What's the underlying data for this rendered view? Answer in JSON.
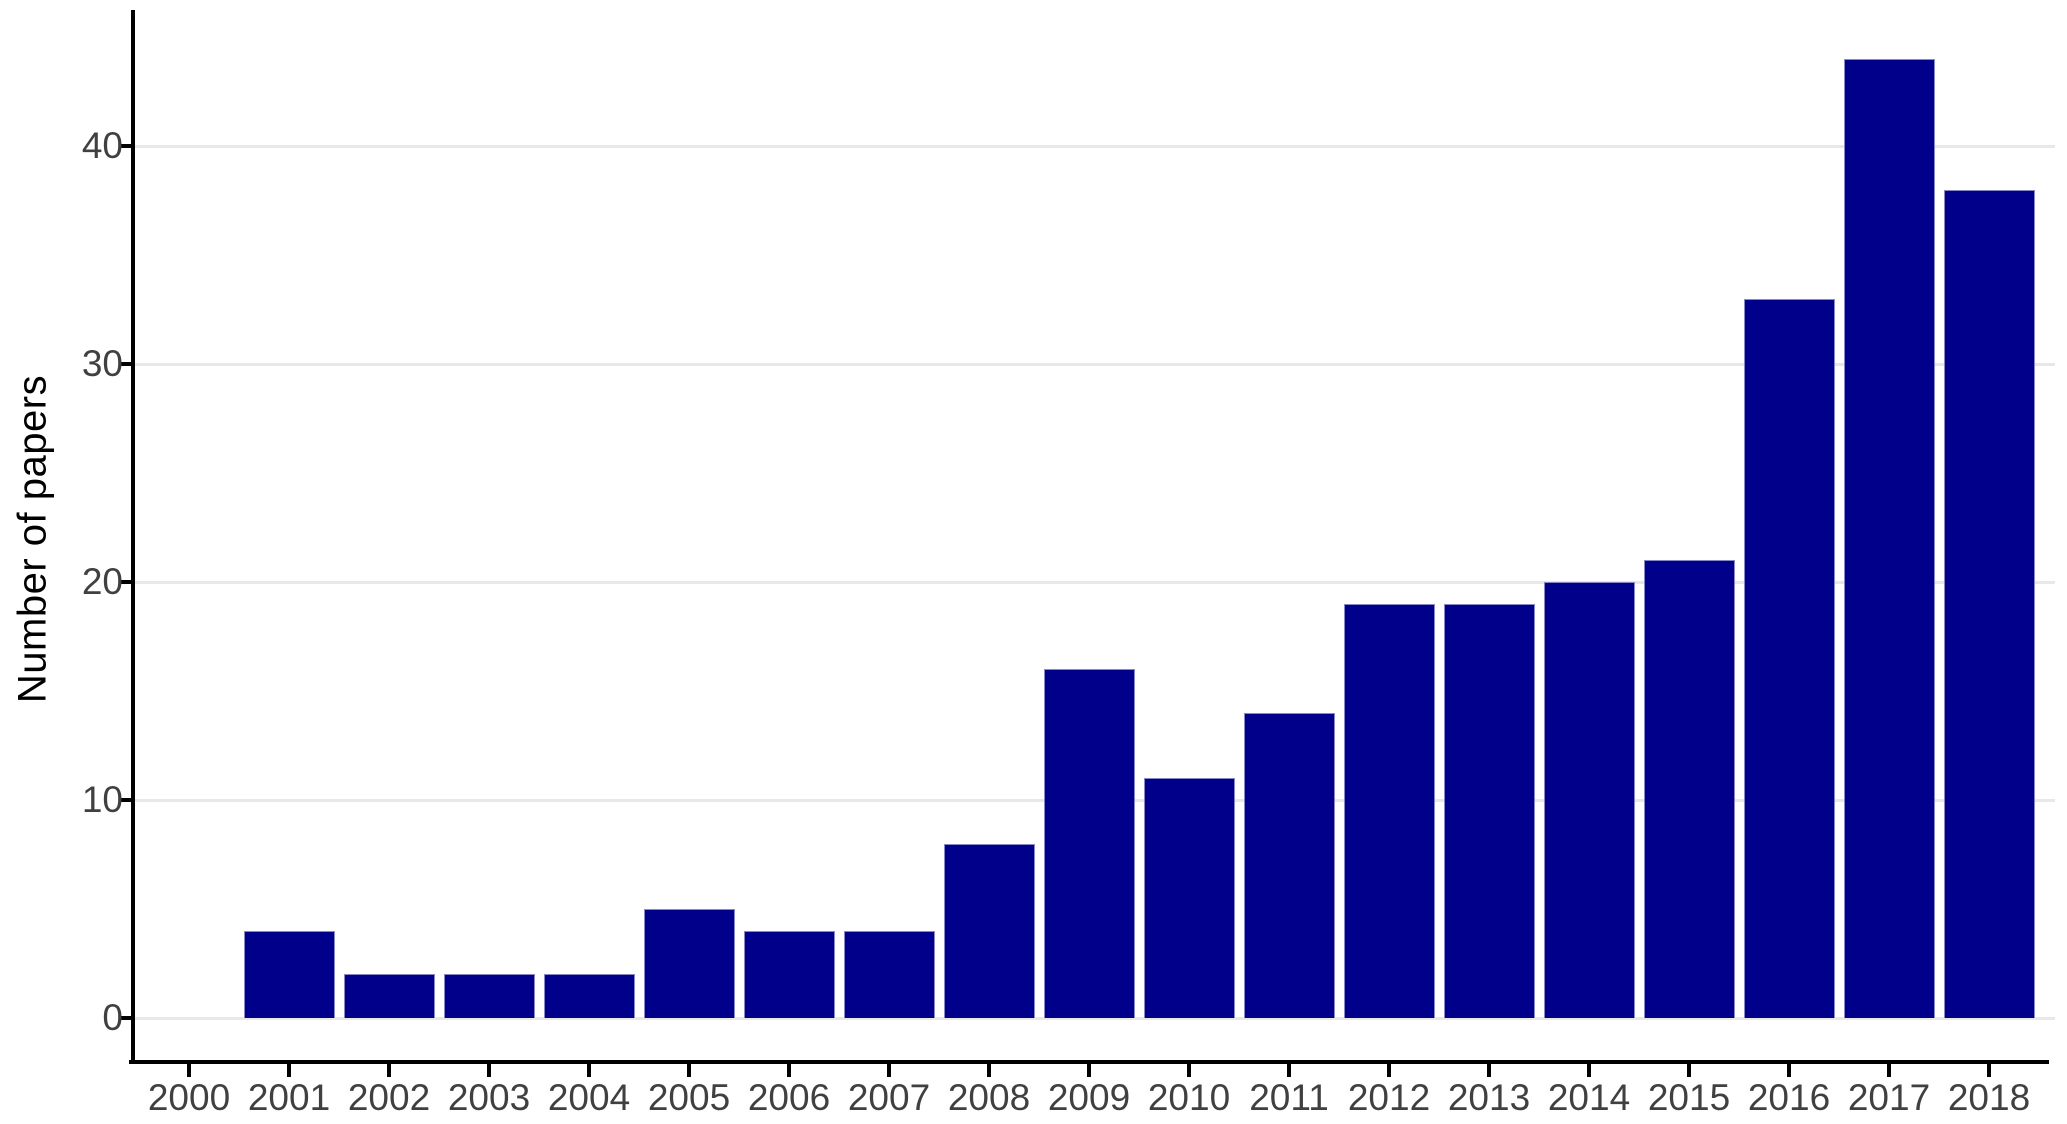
{
  "chart_data": {
    "type": "bar",
    "title": "",
    "xlabel": "",
    "ylabel": "Number of papers",
    "categories": [
      "2000",
      "2001",
      "2002",
      "2003",
      "2004",
      "2005",
      "2006",
      "2007",
      "2008",
      "2009",
      "2010",
      "2011",
      "2012",
      "2013",
      "2014",
      "2015",
      "2016",
      "2017",
      "2018"
    ],
    "values": [
      0,
      4,
      2,
      2,
      2,
      5,
      4,
      4,
      8,
      16,
      11,
      14,
      19,
      19,
      20,
      21,
      33,
      44,
      38
    ],
    "yticks": [
      0,
      10,
      20,
      30,
      40
    ],
    "ylim": [
      0,
      46
    ],
    "grid": "horizontal major gridlines only",
    "legend_position": "none",
    "bar_color": "#00008B",
    "gridline_color": "#e8e8e8",
    "axis_color": "#000000",
    "tick_label_color": "#404040",
    "axis_title_color": "#000000"
  }
}
